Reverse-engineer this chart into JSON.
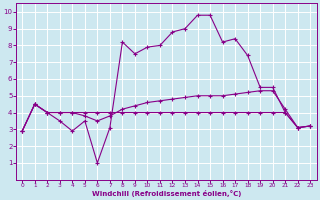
{
  "xlabel": "Windchill (Refroidissement éolien,°C)",
  "background_color": "#cde8f0",
  "grid_color": "#ffffff",
  "line_color": "#880088",
  "xlim": [
    -0.5,
    23.5
  ],
  "ylim": [
    0,
    10.5
  ],
  "xticks": [
    0,
    1,
    2,
    3,
    4,
    5,
    6,
    7,
    8,
    9,
    10,
    11,
    12,
    13,
    14,
    15,
    16,
    17,
    18,
    19,
    20,
    21,
    22,
    23
  ],
  "yticks": [
    1,
    2,
    3,
    4,
    5,
    6,
    7,
    8,
    9,
    10
  ],
  "series": [
    {
      "x": [
        0,
        1,
        2,
        3,
        4,
        5,
        6,
        7,
        8,
        9,
        10,
        11,
        12,
        13,
        14,
        15,
        16,
        17,
        18,
        19,
        20,
        21,
        22,
        23
      ],
      "y": [
        2.9,
        4.5,
        4.0,
        4.0,
        4.0,
        4.0,
        4.0,
        4.0,
        4.0,
        4.0,
        4.0,
        4.0,
        4.0,
        4.0,
        4.0,
        4.0,
        4.0,
        4.0,
        4.0,
        4.0,
        4.0,
        4.0,
        3.1,
        3.2
      ]
    },
    {
      "x": [
        0,
        1,
        2,
        3,
        4,
        5,
        6,
        7,
        8,
        9,
        10,
        11,
        12,
        13,
        14,
        15,
        16,
        17,
        18,
        19,
        20,
        21,
        22,
        23
      ],
      "y": [
        2.9,
        4.5,
        4.0,
        4.0,
        4.0,
        3.8,
        3.5,
        3.8,
        4.2,
        4.4,
        4.6,
        4.7,
        4.8,
        4.9,
        5.0,
        5.0,
        5.0,
        5.1,
        5.2,
        5.3,
        5.3,
        4.2,
        3.1,
        3.2
      ]
    },
    {
      "x": [
        0,
        1,
        2,
        3,
        4,
        5,
        6,
        7,
        8,
        9,
        10,
        11,
        12,
        13,
        14,
        15,
        16,
        17,
        18,
        19,
        20,
        21,
        22,
        23
      ],
      "y": [
        2.9,
        4.5,
        4.0,
        3.5,
        2.9,
        3.5,
        1.0,
        3.1,
        8.2,
        7.5,
        7.9,
        8.0,
        8.8,
        9.0,
        9.8,
        9.8,
        8.2,
        8.4,
        7.4,
        5.5,
        5.5,
        4.0,
        3.1,
        3.2
      ]
    }
  ]
}
